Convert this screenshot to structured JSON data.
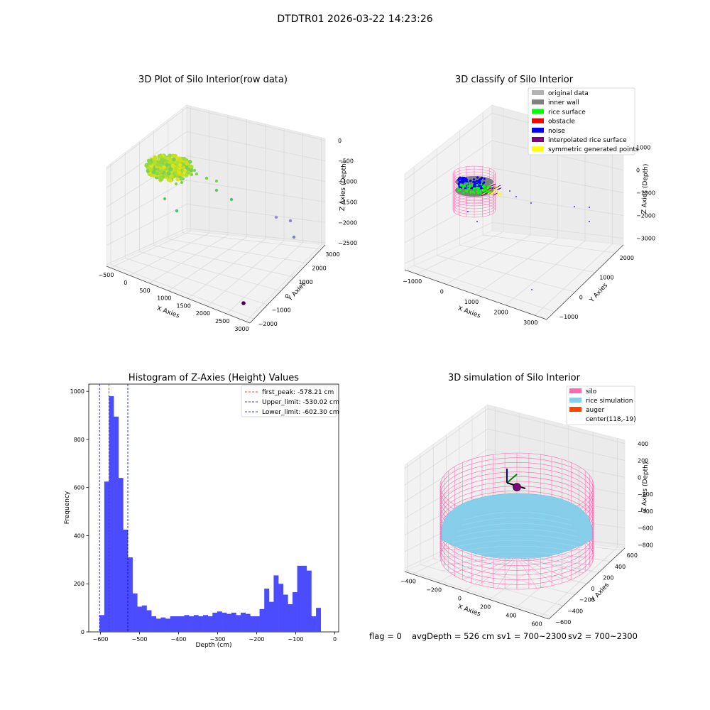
{
  "suptitle": "DTDTR01 2026-03-22 14:23:26",
  "footer": {
    "flag": "flag = 0",
    "avg_depth": "avgDepth = 526 cm",
    "sv1": "sv1 = 700~2300",
    "sv2": "sv2 = 700~2300"
  },
  "colors": {
    "histogram_bar": "#4c4cff",
    "first_peak": "#ff0000",
    "limits": "#0000cc",
    "silo": "#ff69b4",
    "rice_simulation": "#87ceeb",
    "auger": "#ff4500",
    "original_data": "#b3b3b3",
    "inner_wall": "#808080",
    "rice_surface": "#00ff00",
    "obstacle": "#ff0000",
    "noise": "#0000ff",
    "interpolated_rice_surface": "#800080",
    "symmetric_generated_points": "#ffff00"
  },
  "chart_data": [
    {
      "type": "scatter",
      "title": "3D Plot of Silo Interior(row data)",
      "xlabel": "X Axies",
      "ylabel": "Y Axies",
      "zlabel": "Z Axies (Depth)",
      "x_ticks": [
        "−500",
        "0",
        "500",
        "1000",
        "1500",
        "2000",
        "2500",
        "3000"
      ],
      "y_ticks": [
        "−2000",
        "−1000",
        "0",
        "1000",
        "2000",
        "3000"
      ],
      "z_ticks": [
        "0",
        "−500",
        "−1000",
        "−1500",
        "−2000",
        "−2500"
      ]
    },
    {
      "type": "scatter",
      "title": "3D classify of Silo Interior",
      "xlabel": "X Axies",
      "ylabel": "Y Axies",
      "zlabel": "Z Axies (Depth)",
      "x_ticks": [
        "−1000",
        "0",
        "1000",
        "2000",
        "3000"
      ],
      "y_ticks": [
        "−1000",
        "0",
        "1000",
        "2000"
      ],
      "z_ticks": [
        "1000",
        "0",
        "−1000",
        "−2000",
        "−3000"
      ],
      "legend_position": "top-right",
      "legend": [
        "original data",
        "inner wall",
        "rice surface",
        "obstacle",
        "noise",
        "interpolated rice surface",
        "symmetric generated points"
      ]
    },
    {
      "type": "bar",
      "title": "Histogram of Z-Axies (Height) Values",
      "xlabel": "Depth (cm)",
      "ylabel": "Frequency",
      "xlim": [
        -630,
        10
      ],
      "ylim": [
        0,
        1030
      ],
      "x_ticks": [
        -600,
        -500,
        -400,
        -300,
        -200,
        -100,
        0
      ],
      "y_ticks": [
        0,
        200,
        400,
        600,
        800,
        1000
      ],
      "bin_start": -602.3,
      "bin_width": 12.05,
      "values": [
        70,
        625,
        980,
        895,
        640,
        425,
        310,
        160,
        105,
        110,
        90,
        65,
        55,
        60,
        55,
        65,
        65,
        65,
        70,
        65,
        70,
        65,
        70,
        65,
        80,
        85,
        80,
        75,
        80,
        70,
        80,
        75,
        65,
        65,
        95,
        180,
        125,
        235,
        200,
        155,
        115,
        165,
        275,
        275,
        255,
        65,
        100
      ],
      "lines": [
        {
          "name": "first_peak: -578.21 cm",
          "x": -578.21,
          "color": "#ff0000"
        },
        {
          "name": "Upper_limit: -530.02 cm",
          "x": -530.02,
          "color": "#0000cc"
        },
        {
          "name": "Lower_limit: -602.30 cm",
          "x": -602.3,
          "color": "#0000cc"
        }
      ],
      "legend_position": "top-right"
    },
    {
      "type": "scatter",
      "title": "3D simulation of Silo Interior",
      "xlabel": "X Axies",
      "ylabel": "Y Axies",
      "zlabel": "Z Axies (Depth)",
      "x_ticks": [
        "−400",
        "−200",
        "0",
        "200",
        "400",
        "600"
      ],
      "y_ticks": [
        "−600",
        "−400",
        "−200",
        "0",
        "200",
        "400",
        "600"
      ],
      "z_ticks": [
        "400",
        "200",
        "0",
        "−200",
        "−400",
        "−600",
        "−800"
      ],
      "legend_position": "top-right",
      "legend": [
        "silo",
        "rice simulation",
        "auger",
        "center(118,-19)"
      ]
    }
  ]
}
